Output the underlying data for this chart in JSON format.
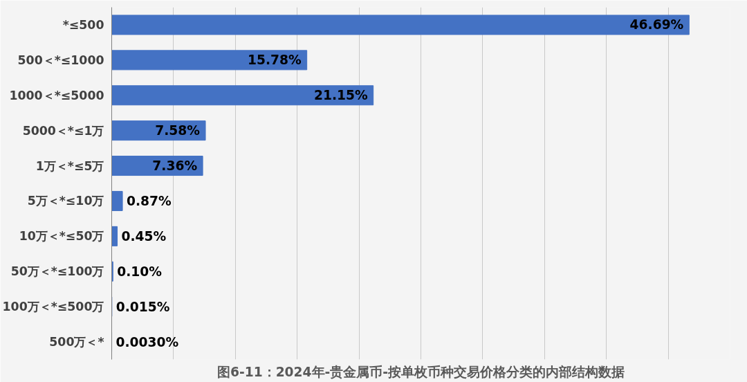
{
  "chart_data": {
    "type": "bar",
    "orientation": "horizontal",
    "title": "图6-11：2024年-贵金属币-按单枚币种交易价格分类的内部结构数据",
    "categories": [
      "*≤500",
      "500＜*≤1000",
      "1000＜*≤5000",
      "5000＜*≤1万",
      "1万＜*≤5万",
      "5万＜*≤10万",
      "10万＜*≤50万",
      "50万＜*≤100万",
      "100万＜*≤500万",
      "500万＜*"
    ],
    "values": [
      46.69,
      15.78,
      21.15,
      7.58,
      7.36,
      0.87,
      0.45,
      0.1,
      0.015,
      0.003
    ],
    "value_labels": [
      "46.69%",
      "15.78%",
      "21.15%",
      "7.58%",
      "7.36%",
      "0.87%",
      "0.45%",
      "0.10%",
      "0.015%",
      "0.0030%"
    ],
    "color": "#4472c4",
    "xlim": [
      0,
      50
    ],
    "xticks": [
      {
        "value": 0,
        "label": null
      },
      {
        "value": 5,
        "label": null
      },
      {
        "value": 10,
        "label": null
      },
      {
        "value": 15,
        "label": null
      },
      {
        "value": 20,
        "label": null
      },
      {
        "value": 25,
        "label": null
      },
      {
        "value": 30,
        "label": null
      },
      {
        "value": 35,
        "label": null
      },
      {
        "value": 40,
        "label": null
      },
      {
        "value": 45,
        "label": null
      },
      {
        "value": 50,
        "label": null
      }
    ],
    "grid": "x",
    "tick_labels": "y"
  }
}
